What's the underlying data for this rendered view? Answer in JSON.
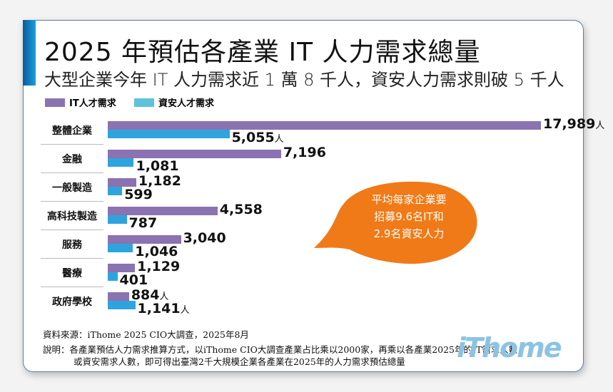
{
  "title": "2025 年預估各產業 IT 人力需求總量",
  "subtitle": "大型企業今年 IT 人力需求近 1 萬 8 千人，資安人力需求則破 5 千人",
  "colors": {
    "it": "#8b72b0",
    "sec_legend": "#5ec3d8",
    "sec_bar": "#2ea4de",
    "bubble": "#f07a17"
  },
  "chart_data": {
    "type": "bar",
    "orientation": "horizontal",
    "categories": [
      "整體企業",
      "金融",
      "一般製造",
      "高科技製造",
      "服務",
      "醫療",
      "政府學校"
    ],
    "series": [
      {
        "name": "IT人才需求",
        "values": [
          17989,
          7196,
          1182,
          4558,
          3040,
          1129,
          884
        ]
      },
      {
        "name": "資安人才需求",
        "values": [
          5055,
          1081,
          599,
          787,
          1046,
          401,
          1141
        ]
      }
    ],
    "labels": {
      "it": [
        "17,989",
        "7,196",
        "1,182",
        "4,558",
        "3,040",
        "1,129",
        "884"
      ],
      "sec": [
        "5,055",
        "1,081",
        "599",
        "787",
        "1,046",
        "401",
        "1,141"
      ]
    },
    "unit": "人",
    "legend": "top-left"
  },
  "callout": [
    "平均每家企業要",
    "招募9.6名IT和",
    "2.9名資安人力"
  ],
  "source": "資料來源：iThome 2025 CIO大調查，2025年8月",
  "note1": "說明：各產業預估人力需求推算方式，以iThome CIO大調查產業占比乘以2000家，再乘以各產業2025年的IT需求人數",
  "note2": "或資安需求人數，即可得出臺灣2千大規模企業各產業在2025年的人力需求預估總量",
  "logo": "iThome"
}
